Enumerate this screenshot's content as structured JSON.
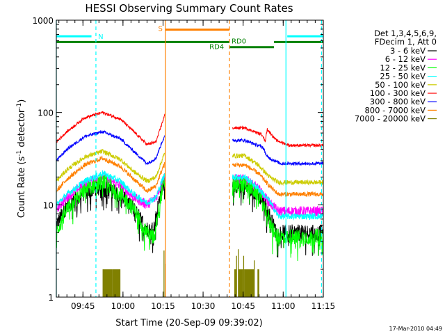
{
  "chart_data": {
    "type": "line",
    "title": "HESSI Observing Summary Count Rates",
    "xlabel": "Start Time (20-Sep-09 09:39:02)",
    "ylabel": "Count Rate (s",
    "ylabel_sup1": "-1",
    "ylabel_mid": " detector",
    "ylabel_sup2": "-1",
    "ylabel_end": ")",
    "yscale": "log",
    "ylim": [
      1,
      1000
    ],
    "xlim": [
      -240,
      5760
    ],
    "xticks": [
      {
        "label": "09:45",
        "t": 358
      },
      {
        "label": "10:00",
        "t": 1258
      },
      {
        "label": "10:15",
        "t": 2158
      },
      {
        "label": "10:30",
        "t": 3058
      },
      {
        "label": "10:45",
        "t": 3958
      },
      {
        "label": "11:00",
        "t": 4858
      },
      {
        "label": "11:15",
        "t": 5758
      }
    ],
    "yticks": [
      {
        "label": "1",
        "v": 1
      },
      {
        "label": "10",
        "v": 10
      },
      {
        "label": "100",
        "v": 100
      },
      {
        "label": "1000",
        "v": 1000
      }
    ],
    "legend": {
      "header1": "Det 1,3,4,5,6,9,",
      "header2": "FDecim 1, Att 0"
    },
    "series": [
      {
        "name": "3 - 6 keV",
        "color": "#000000",
        "noise": 0.35,
        "spikes": true,
        "values": [
          {
            "t": -240,
            "v": 6
          },
          {
            "t": 0,
            "v": 10
          },
          {
            "t": 400,
            "v": 13.5
          },
          {
            "t": 800,
            "v": 16
          },
          {
            "t": 1200,
            "v": 13
          },
          {
            "t": 1500,
            "v": 9
          },
          {
            "t": 1800,
            "v": 5.5
          },
          {
            "t": 1950,
            "v": 5.5
          },
          {
            "t": 2120,
            "v": 15
          },
          {
            "t": 2200,
            "v": 22
          },
          {
            "t": 2250,
            "v": null
          },
          {
            "t": 3700,
            "v": null
          },
          {
            "t": 3720,
            "v": 16
          },
          {
            "t": 4000,
            "v": 16
          },
          {
            "t": 4300,
            "v": 13
          },
          {
            "t": 4500,
            "v": 9
          },
          {
            "t": 4700,
            "v": 5
          },
          {
            "t": 5760,
            "v": 5
          }
        ]
      },
      {
        "name": "6 - 12 keV",
        "color": "#ff00ff",
        "noise": 0.22,
        "values": [
          {
            "t": -240,
            "v": 9
          },
          {
            "t": 0,
            "v": 12
          },
          {
            "t": 400,
            "v": 17
          },
          {
            "t": 800,
            "v": 20
          },
          {
            "t": 1200,
            "v": 16
          },
          {
            "t": 1500,
            "v": 12
          },
          {
            "t": 1800,
            "v": 10
          },
          {
            "t": 2000,
            "v": 12
          },
          {
            "t": 2150,
            "v": 18
          },
          {
            "t": 2200,
            "v": 20
          },
          {
            "t": 2250,
            "v": null
          },
          {
            "t": 3700,
            "v": null
          },
          {
            "t": 3720,
            "v": 19
          },
          {
            "t": 4000,
            "v": 19
          },
          {
            "t": 4300,
            "v": 15
          },
          {
            "t": 4550,
            "v": 10.5
          },
          {
            "t": 4750,
            "v": 8.5
          },
          {
            "t": 5760,
            "v": 8.5
          }
        ]
      },
      {
        "name": "12 - 25 keV",
        "color": "#00ff00",
        "noise": 0.35,
        "spikes": true,
        "values": [
          {
            "t": -240,
            "v": 5
          },
          {
            "t": 0,
            "v": 9
          },
          {
            "t": 400,
            "v": 14.5
          },
          {
            "t": 800,
            "v": 18
          },
          {
            "t": 1200,
            "v": 13.5
          },
          {
            "t": 1500,
            "v": 9
          },
          {
            "t": 1800,
            "v": 5
          },
          {
            "t": 1950,
            "v": 4.5
          },
          {
            "t": 2120,
            "v": 13
          },
          {
            "t": 2200,
            "v": 18
          },
          {
            "t": 2250,
            "v": null
          },
          {
            "t": 3700,
            "v": null
          },
          {
            "t": 3720,
            "v": 17
          },
          {
            "t": 4000,
            "v": 17
          },
          {
            "t": 4300,
            "v": 13
          },
          {
            "t": 4500,
            "v": 8
          },
          {
            "t": 4700,
            "v": 4.5
          },
          {
            "t": 5760,
            "v": 4.5
          }
        ]
      },
      {
        "name": "25 - 50 keV",
        "color": "#00ffff",
        "noise": 0.14,
        "values": [
          {
            "t": -240,
            "v": 10
          },
          {
            "t": 0,
            "v": 13
          },
          {
            "t": 400,
            "v": 18
          },
          {
            "t": 800,
            "v": 22
          },
          {
            "t": 1200,
            "v": 18
          },
          {
            "t": 1500,
            "v": 13
          },
          {
            "t": 1800,
            "v": 10.5
          },
          {
            "t": 2000,
            "v": 12
          },
          {
            "t": 2150,
            "v": 19
          },
          {
            "t": 2200,
            "v": 21
          },
          {
            "t": 2250,
            "v": null
          },
          {
            "t": 3700,
            "v": null
          },
          {
            "t": 3720,
            "v": 20
          },
          {
            "t": 4000,
            "v": 20
          },
          {
            "t": 4300,
            "v": 15
          },
          {
            "t": 4550,
            "v": 11
          },
          {
            "t": 4750,
            "v": 7.5
          },
          {
            "t": 5760,
            "v": 7.5
          }
        ]
      },
      {
        "name": "50 - 100 keV",
        "color": "#cccc00",
        "noise": 0.1,
        "values": [
          {
            "t": -240,
            "v": 18
          },
          {
            "t": 0,
            "v": 24
          },
          {
            "t": 400,
            "v": 33
          },
          {
            "t": 800,
            "v": 38
          },
          {
            "t": 1200,
            "v": 31
          },
          {
            "t": 1500,
            "v": 23
          },
          {
            "t": 1800,
            "v": 18
          },
          {
            "t": 2000,
            "v": 20
          },
          {
            "t": 2150,
            "v": 32
          },
          {
            "t": 2200,
            "v": 36
          },
          {
            "t": 2250,
            "v": null
          },
          {
            "t": 3700,
            "v": null
          },
          {
            "t": 3720,
            "v": 34
          },
          {
            "t": 4000,
            "v": 34
          },
          {
            "t": 4300,
            "v": 27
          },
          {
            "t": 4550,
            "v": 20
          },
          {
            "t": 4750,
            "v": 17.5
          },
          {
            "t": 5760,
            "v": 17.5
          }
        ]
      },
      {
        "name": "100 - 300 keV",
        "color": "#ff0000",
        "noise": 0.06,
        "values": [
          {
            "t": -240,
            "v": 48
          },
          {
            "t": 0,
            "v": 62
          },
          {
            "t": 400,
            "v": 88
          },
          {
            "t": 800,
            "v": 100
          },
          {
            "t": 1200,
            "v": 85
          },
          {
            "t": 1500,
            "v": 62
          },
          {
            "t": 1800,
            "v": 45
          },
          {
            "t": 2000,
            "v": 48
          },
          {
            "t": 2150,
            "v": 80
          },
          {
            "t": 2200,
            "v": 95
          },
          {
            "t": 2250,
            "v": null
          },
          {
            "t": 3700,
            "v": null
          },
          {
            "t": 3720,
            "v": 68
          },
          {
            "t": 4000,
            "v": 68
          },
          {
            "t": 4400,
            "v": 57
          },
          {
            "t": 4450,
            "v": 48
          },
          {
            "t": 4500,
            "v": 66
          },
          {
            "t": 4700,
            "v": 50
          },
          {
            "t": 5000,
            "v": 44
          },
          {
            "t": 5760,
            "v": 44
          }
        ]
      },
      {
        "name": "300 - 800 keV",
        "color": "#0000ff",
        "noise": 0.07,
        "values": [
          {
            "t": -240,
            "v": 30
          },
          {
            "t": 0,
            "v": 40
          },
          {
            "t": 400,
            "v": 55
          },
          {
            "t": 800,
            "v": 62
          },
          {
            "t": 1200,
            "v": 52
          },
          {
            "t": 1500,
            "v": 38
          },
          {
            "t": 1800,
            "v": 28
          },
          {
            "t": 2000,
            "v": 32
          },
          {
            "t": 2150,
            "v": 50
          },
          {
            "t": 2200,
            "v": 55
          },
          {
            "t": 2250,
            "v": null
          },
          {
            "t": 3700,
            "v": null
          },
          {
            "t": 3720,
            "v": 50
          },
          {
            "t": 4000,
            "v": 50
          },
          {
            "t": 4400,
            "v": 42
          },
          {
            "t": 4500,
            "v": 33
          },
          {
            "t": 4800,
            "v": 28
          },
          {
            "t": 5760,
            "v": 28
          }
        ]
      },
      {
        "name": "800 - 7000 keV",
        "color": "#ff8000",
        "noise": 0.1,
        "values": [
          {
            "t": -240,
            "v": 14
          },
          {
            "t": 0,
            "v": 19
          },
          {
            "t": 400,
            "v": 27
          },
          {
            "t": 800,
            "v": 32
          },
          {
            "t": 1200,
            "v": 26
          },
          {
            "t": 1500,
            "v": 19
          },
          {
            "t": 1800,
            "v": 14
          },
          {
            "t": 2000,
            "v": 16
          },
          {
            "t": 2150,
            "v": 25
          },
          {
            "t": 2200,
            "v": 28
          },
          {
            "t": 2250,
            "v": null
          },
          {
            "t": 3700,
            "v": null
          },
          {
            "t": 3720,
            "v": 27
          },
          {
            "t": 4000,
            "v": 27
          },
          {
            "t": 4300,
            "v": 22
          },
          {
            "t": 4550,
            "v": 16
          },
          {
            "t": 4750,
            "v": 13
          },
          {
            "t": 5760,
            "v": 13
          }
        ]
      },
      {
        "name": "7000 - 20000 keV",
        "color": "#808000",
        "noise": 0,
        "bars": [
          {
            "t0": 800,
            "t1": 1020,
            "v": 2
          },
          {
            "t0": 1020,
            "t1": 1200,
            "v": 2
          },
          {
            "t0": 2170,
            "t1": 2190,
            "v": 3.2
          },
          {
            "t0": 2200,
            "t1": 2215,
            "v": 2.3
          },
          {
            "t0": 3760,
            "t1": 3800,
            "v": 2
          },
          {
            "t0": 3800,
            "t1": 3820,
            "v": 2.8
          },
          {
            "t0": 3840,
            "t1": 3860,
            "v": 3.3
          },
          {
            "t0": 3860,
            "t1": 3960,
            "v": 2
          },
          {
            "t0": 3960,
            "t1": 3980,
            "v": 2.8
          },
          {
            "t0": 3980,
            "t1": 4200,
            "v": 2
          },
          {
            "t0": 4200,
            "t1": 4220,
            "v": 2.5
          },
          {
            "t0": 4280,
            "t1": 4320,
            "v": 2
          }
        ]
      }
    ],
    "markers": [
      {
        "t": -240,
        "color": "#00ffff",
        "style": "solid"
      },
      {
        "t": 650,
        "color": "#00ffff",
        "style": "dashed"
      },
      {
        "t": 2210,
        "color": "#ff8000",
        "style": "solid"
      },
      {
        "t": 3650,
        "color": "#ff8000",
        "style": "dashed"
      },
      {
        "t": 4920,
        "color": "#00ffff",
        "style": "solid"
      },
      {
        "t": 5720,
        "color": "#00ffff",
        "style": "dashed"
      }
    ],
    "flag_bars": [
      {
        "t0": -240,
        "t1": 550,
        "v": 670,
        "color": "#00ffff"
      },
      {
        "t0": 4950,
        "t1": 5760,
        "v": 670,
        "color": "#00ffff"
      },
      {
        "t0": 2210,
        "t1": 3650,
        "v": 790,
        "color": "#ff8000"
      },
      {
        "t0": -240,
        "t1": 2210,
        "v": 580,
        "color": "#008000"
      },
      {
        "t0": 2210,
        "t1": 3650,
        "v": 580,
        "color": "#008000"
      },
      {
        "t0": 3650,
        "t1": 4650,
        "v": 510,
        "color": "#008000"
      },
      {
        "t0": 4650,
        "t1": 5760,
        "v": 580,
        "color": "#008000"
      }
    ],
    "flag_labels": [
      {
        "text": "N",
        "t": 700,
        "v": 670,
        "color": "#00ffff"
      },
      {
        "text": "S",
        "t": 2050,
        "v": 820,
        "color": "#ff8000"
      },
      {
        "text": "RD0",
        "t": 3700,
        "v": 600,
        "color": "#008000"
      },
      {
        "text": "RD4",
        "t": 3200,
        "v": 520,
        "color": "#008000"
      }
    ],
    "timestamp": "17-Mar-2010 04:49"
  }
}
